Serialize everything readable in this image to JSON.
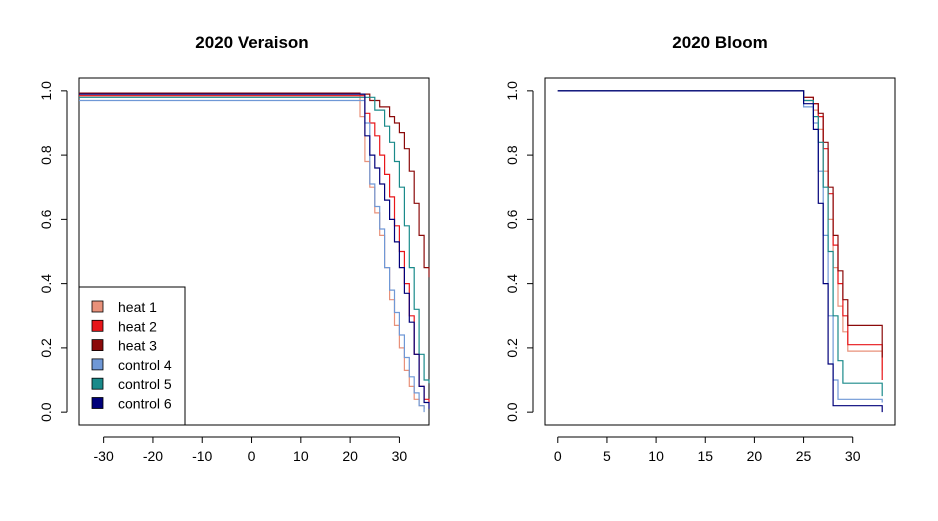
{
  "series_names": [
    "heat 1",
    "heat 2",
    "heat 3",
    "control 4",
    "control 5",
    "control 6"
  ],
  "series_colors": [
    "#e8917a",
    "#e8161a",
    "#8b0a0a",
    "#6f98d6",
    "#1a8a8a",
    "#00007a"
  ],
  "chart_data": [
    {
      "type": "line",
      "step": true,
      "title": "2020 Veraison",
      "xlabel": "",
      "ylabel": "",
      "xlim": [
        -35,
        36
      ],
      "ylim": [
        0,
        1
      ],
      "xticks": [
        -30,
        -20,
        -10,
        0,
        10,
        20,
        30
      ],
      "yticks": [
        0.0,
        0.2,
        0.4,
        0.6,
        0.8,
        1.0
      ],
      "ytick_labels": [
        "0.0",
        "0.2",
        "0.4",
        "0.6",
        "0.8",
        "1.0"
      ],
      "legend_position": "bottom-left",
      "series": [
        {
          "name": "heat 1",
          "x": [
            -35,
            17,
            22,
            23,
            24,
            25,
            26,
            27,
            28,
            29,
            30,
            31,
            32,
            33,
            34,
            35
          ],
          "y": [
            0.985,
            0.985,
            0.92,
            0.78,
            0.7,
            0.62,
            0.55,
            0.45,
            0.35,
            0.27,
            0.2,
            0.13,
            0.08,
            0.04,
            0.02,
            0.01
          ]
        },
        {
          "name": "heat 2",
          "x": [
            -35,
            17,
            23,
            24,
            25,
            26,
            27,
            28,
            29,
            30,
            31,
            32,
            33,
            34,
            35,
            36
          ],
          "y": [
            0.985,
            0.985,
            0.93,
            0.9,
            0.86,
            0.8,
            0.74,
            0.67,
            0.58,
            0.5,
            0.4,
            0.3,
            0.18,
            0.08,
            0.04,
            0.03
          ]
        },
        {
          "name": "heat 3",
          "x": [
            -35,
            17,
            22,
            24,
            26,
            28,
            29,
            30,
            31,
            32,
            33,
            34,
            35,
            36
          ],
          "y": [
            0.993,
            0.993,
            0.99,
            0.97,
            0.95,
            0.92,
            0.9,
            0.87,
            0.82,
            0.75,
            0.65,
            0.55,
            0.45,
            0.42
          ]
        },
        {
          "name": "control 4",
          "x": [
            -35,
            17,
            23,
            24,
            25,
            26,
            27,
            28,
            29,
            30,
            31,
            32,
            33,
            34,
            35
          ],
          "y": [
            0.97,
            0.97,
            0.9,
            0.71,
            0.64,
            0.57,
            0.45,
            0.38,
            0.31,
            0.24,
            0.17,
            0.11,
            0.06,
            0.02,
            0.0
          ]
        },
        {
          "name": "control 5",
          "x": [
            -35,
            17,
            23,
            25,
            27,
            28,
            29,
            30,
            31,
            32,
            33,
            34,
            35,
            36
          ],
          "y": [
            0.98,
            0.98,
            0.98,
            0.94,
            0.89,
            0.84,
            0.78,
            0.7,
            0.58,
            0.45,
            0.32,
            0.18,
            0.1,
            0.09
          ]
        },
        {
          "name": "control 6",
          "x": [
            -35,
            17,
            23,
            24,
            25,
            26,
            27,
            28,
            29,
            30,
            31,
            32,
            33,
            34,
            35,
            36
          ],
          "y": [
            0.99,
            0.99,
            0.86,
            0.8,
            0.76,
            0.71,
            0.66,
            0.6,
            0.53,
            0.45,
            0.37,
            0.28,
            0.18,
            0.08,
            0.03,
            0.01
          ]
        }
      ]
    },
    {
      "type": "line",
      "step": true,
      "title": "2020 Bloom",
      "xlabel": "",
      "ylabel": "",
      "xlim": [
        0,
        33
      ],
      "ylim": [
        0,
        1
      ],
      "xticks": [
        0,
        5,
        10,
        15,
        20,
        25,
        30
      ],
      "yticks": [
        0.0,
        0.2,
        0.4,
        0.6,
        0.8,
        1.0
      ],
      "ytick_labels": [
        "0.0",
        "0.2",
        "0.4",
        "0.6",
        "0.8",
        "1.0"
      ],
      "series": [
        {
          "name": "heat 1",
          "x": [
            0,
            24,
            25,
            26,
            26.5,
            27,
            27.5,
            28,
            28.5,
            29,
            29.5,
            33
          ],
          "y": [
            1.0,
            1.0,
            0.97,
            0.94,
            0.88,
            0.75,
            0.6,
            0.45,
            0.33,
            0.25,
            0.19,
            0.13
          ]
        },
        {
          "name": "heat 2",
          "x": [
            0,
            24,
            25,
            26,
            26.5,
            27,
            27.5,
            28,
            28.5,
            29,
            29.5,
            33
          ],
          "y": [
            1.0,
            1.0,
            0.98,
            0.96,
            0.92,
            0.82,
            0.68,
            0.52,
            0.4,
            0.3,
            0.21,
            0.1
          ]
        },
        {
          "name": "heat 3",
          "x": [
            0,
            24,
            25,
            26,
            26.5,
            27,
            27.5,
            28,
            28.5,
            29,
            29.5,
            33
          ],
          "y": [
            1.0,
            1.0,
            0.98,
            0.96,
            0.93,
            0.84,
            0.7,
            0.55,
            0.44,
            0.35,
            0.27,
            0.17
          ]
        },
        {
          "name": "control 4",
          "x": [
            0,
            24,
            25,
            26,
            26.5,
            27,
            27.5,
            28,
            28.5,
            33
          ],
          "y": [
            1.0,
            1.0,
            0.95,
            0.9,
            0.75,
            0.55,
            0.3,
            0.1,
            0.04,
            0.03
          ]
        },
        {
          "name": "control 5",
          "x": [
            0,
            24,
            25,
            26,
            26.5,
            27,
            27.5,
            28,
            28.5,
            29,
            33
          ],
          "y": [
            1.0,
            1.0,
            0.97,
            0.92,
            0.84,
            0.7,
            0.5,
            0.3,
            0.16,
            0.09,
            0.05
          ]
        },
        {
          "name": "control 6",
          "x": [
            0,
            24,
            25,
            26,
            26.5,
            27,
            27.5,
            28,
            33
          ],
          "y": [
            1.0,
            1.0,
            0.96,
            0.88,
            0.65,
            0.4,
            0.15,
            0.02,
            0.0
          ]
        }
      ]
    }
  ]
}
